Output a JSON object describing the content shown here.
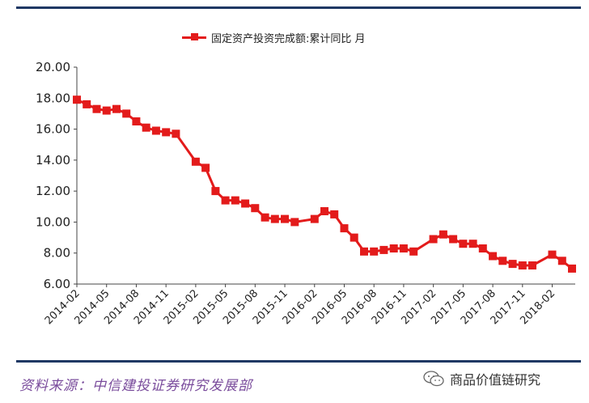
{
  "chart_data": {
    "type": "line",
    "title": "",
    "xlabel": "",
    "ylabel": "",
    "ylim": [
      6,
      20
    ],
    "y_ticks": [
      "20.00",
      "18.00",
      "16.00",
      "14.00",
      "12.00",
      "10.00",
      "8.00",
      "6.00"
    ],
    "x_tick_labels": [
      "2014-02",
      "2014-05",
      "2014-08",
      "2014-11",
      "2015-02",
      "2015-05",
      "2015-08",
      "2015-11",
      "2016-02",
      "2016-05",
      "2016-08",
      "2016-11",
      "2017-02",
      "2017-05",
      "2017-08",
      "2017-11",
      "2018-02"
    ],
    "grid": false,
    "legend_position": "top-center",
    "series": [
      {
        "name": "固定资产投资完成额:累计同比 月",
        "color": "#e31b1b",
        "points": [
          [
            "2014-02",
            17.9
          ],
          [
            "2014-03",
            17.6
          ],
          [
            "2014-04",
            17.3
          ],
          [
            "2014-05",
            17.2
          ],
          [
            "2014-06",
            17.3
          ],
          [
            "2014-07",
            17.0
          ],
          [
            "2014-08",
            16.5
          ],
          [
            "2014-09",
            16.1
          ],
          [
            "2014-10",
            15.9
          ],
          [
            "2014-11",
            15.8
          ],
          [
            "2014-12",
            15.7
          ],
          [
            "2015-02",
            13.9
          ],
          [
            "2015-03",
            13.5
          ],
          [
            "2015-04",
            12.0
          ],
          [
            "2015-05",
            11.4
          ],
          [
            "2015-06",
            11.4
          ],
          [
            "2015-07",
            11.2
          ],
          [
            "2015-08",
            10.9
          ],
          [
            "2015-09",
            10.3
          ],
          [
            "2015-10",
            10.2
          ],
          [
            "2015-11",
            10.2
          ],
          [
            "2015-12",
            10.0
          ],
          [
            "2016-02",
            10.2
          ],
          [
            "2016-03",
            10.7
          ],
          [
            "2016-04",
            10.5
          ],
          [
            "2016-05",
            9.6
          ],
          [
            "2016-06",
            9.0
          ],
          [
            "2016-07",
            8.1
          ],
          [
            "2016-08",
            8.1
          ],
          [
            "2016-09",
            8.2
          ],
          [
            "2016-10",
            8.3
          ],
          [
            "2016-11",
            8.3
          ],
          [
            "2016-12",
            8.1
          ],
          [
            "2017-02",
            8.9
          ],
          [
            "2017-03",
            9.2
          ],
          [
            "2017-04",
            8.9
          ],
          [
            "2017-05",
            8.6
          ],
          [
            "2017-06",
            8.6
          ],
          [
            "2017-07",
            8.3
          ],
          [
            "2017-08",
            7.8
          ],
          [
            "2017-09",
            7.5
          ],
          [
            "2017-10",
            7.3
          ],
          [
            "2017-11",
            7.2
          ],
          [
            "2017-12",
            7.2
          ],
          [
            "2018-02",
            7.9
          ],
          [
            "2018-03",
            7.5
          ],
          [
            "2018-04",
            7.0
          ]
        ]
      }
    ]
  },
  "legend": {
    "label": "固定资产投资完成额:累计同比 月"
  },
  "footer": {
    "source": "资料来源：中信建投证券研究发展部",
    "watermark": "商品价值链研究"
  }
}
